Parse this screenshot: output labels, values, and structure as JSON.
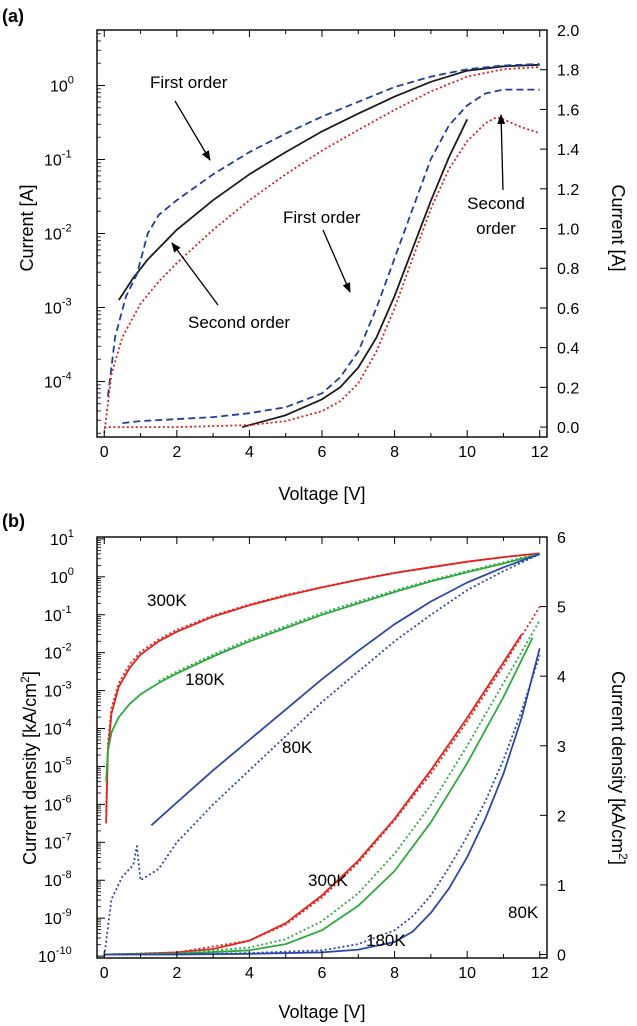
{
  "chart_data": [
    {
      "panel_label": "(a)",
      "type": "line",
      "xlabel": "Voltage [V]",
      "ylabel_left": "Current [A]",
      "ylabel_right": "Current [A]",
      "xlim": [
        -0.2,
        12.2
      ],
      "ylim_left_log10": [
        -4.75,
        0.75
      ],
      "ylim_right": [
        -0.05,
        2.0
      ],
      "y_left_scale": "log",
      "y_right_scale": "linear",
      "x_ticks": [
        "0",
        "2",
        "4",
        "6",
        "8",
        "10",
        "12"
      ],
      "y_left_ticks": [
        {
          "exp": 0,
          "base": "10",
          "sup": "0"
        },
        {
          "exp": -1,
          "base": "10",
          "sup": "-1"
        },
        {
          "exp": -2,
          "base": "10",
          "sup": "-2"
        },
        {
          "exp": -3,
          "base": "10",
          "sup": "-3"
        },
        {
          "exp": -4,
          "base": "10",
          "sup": "-4"
        }
      ],
      "y_right_ticks": [
        "0.0",
        "0.2",
        "0.4",
        "0.6",
        "0.8",
        "1.0",
        "1.2",
        "1.4",
        "1.6",
        "1.8",
        "2.0"
      ],
      "annotations": [
        "First order",
        "Second order",
        "First order",
        "Second",
        "order"
      ],
      "series": [
        {
          "color": "#1b1b1b",
          "dash": "solid",
          "axis": "log",
          "x": [
            0.4,
            0.8,
            1.2,
            2.0,
            3.0,
            4.0,
            5.0,
            6.0,
            7.0,
            8.0,
            9.0,
            10.0,
            11.0,
            12.0
          ],
          "y": [
            -2.9,
            -2.6,
            -2.35,
            -1.95,
            -1.55,
            -1.2,
            -0.9,
            -0.62,
            -0.38,
            -0.15,
            0.05,
            0.2,
            0.26,
            0.28
          ]
        },
        {
          "color": "#1f3f9e",
          "dash": "dashed",
          "axis": "log",
          "x": [
            0.1,
            0.3,
            0.6,
            0.9,
            1.2,
            1.5,
            2.0,
            3.0,
            4.0,
            5.0,
            6.0,
            7.0,
            8.0,
            9.0,
            10.0,
            11.0,
            12.0
          ],
          "y": [
            -4.2,
            -3.4,
            -2.85,
            -2.55,
            -2.0,
            -1.75,
            -1.55,
            -1.2,
            -0.9,
            -0.65,
            -0.42,
            -0.22,
            -0.02,
            0.12,
            0.22,
            0.27,
            0.29
          ]
        },
        {
          "color": "#d62020",
          "dash": "dotted",
          "axis": "log",
          "x": [
            0.0,
            0.2,
            0.5,
            1.0,
            1.5,
            2.0,
            3.0,
            4.0,
            5.0,
            6.0,
            7.0,
            8.0,
            9.0,
            10.0,
            11.0,
            12.0
          ],
          "y": [
            -4.7,
            -3.9,
            -3.4,
            -2.95,
            -2.65,
            -2.4,
            -1.95,
            -1.55,
            -1.2,
            -0.88,
            -0.6,
            -0.33,
            -0.08,
            0.12,
            0.22,
            0.25
          ]
        },
        {
          "color": "#1b1b1b",
          "dash": "solid",
          "axis": "linear",
          "x": [
            3.8,
            5.0,
            6.0,
            6.5,
            7.0,
            7.5,
            8.0,
            8.5,
            9.0,
            9.5,
            10.0
          ],
          "y": [
            0.0,
            0.06,
            0.14,
            0.2,
            0.3,
            0.45,
            0.66,
            0.9,
            1.14,
            1.36,
            1.55
          ]
        },
        {
          "color": "#1f3f9e",
          "dash": "dashed",
          "axis": "linear",
          "x": [
            0.5,
            1.0,
            2.0,
            3.0,
            4.0,
            5.0,
            6.0,
            6.5,
            7.0,
            7.5,
            8.0,
            8.5,
            9.0,
            9.5,
            10.0,
            10.5,
            11.0,
            11.5,
            12.0
          ],
          "y": [
            0.02,
            0.03,
            0.04,
            0.05,
            0.07,
            0.1,
            0.17,
            0.25,
            0.38,
            0.6,
            0.85,
            1.1,
            1.35,
            1.52,
            1.62,
            1.68,
            1.7,
            1.7,
            1.7
          ]
        },
        {
          "color": "#d62020",
          "dash": "dotted",
          "axis": "linear",
          "x": [
            0.0,
            2.0,
            4.0,
            5.0,
            6.0,
            6.5,
            7.0,
            7.5,
            8.0,
            8.5,
            9.0,
            9.5,
            10.0,
            10.5,
            10.8,
            11.0,
            11.5,
            12.0
          ],
          "y": [
            0.0,
            0.0,
            0.01,
            0.03,
            0.08,
            0.13,
            0.22,
            0.38,
            0.6,
            0.85,
            1.1,
            1.3,
            1.44,
            1.53,
            1.56,
            1.55,
            1.51,
            1.48
          ]
        }
      ]
    },
    {
      "panel_label": "(b)",
      "type": "line",
      "xlabel": "Voltage [V]",
      "ylabel_left": "Current density [kA/cm²]",
      "ylabel_right": "Current density [kA/cm²]",
      "ylabel_base": "Current density [kA/cm",
      "ylabel_sup": "2",
      "ylabel_end": "]",
      "xlim": [
        -0.2,
        12.2
      ],
      "ylim_left_log10": [
        -10.05,
        1.05
      ],
      "ylim_right": [
        -0.05,
        6.0
      ],
      "y_left_scale": "log",
      "y_right_scale": "linear",
      "x_ticks": [
        "0",
        "2",
        "4",
        "6",
        "8",
        "10",
        "12"
      ],
      "y_left_ticks": [
        {
          "exp": 1,
          "base": "10",
          "sup": "1"
        },
        {
          "exp": 0,
          "base": "10",
          "sup": "0"
        },
        {
          "exp": -1,
          "base": "10",
          "sup": "-1"
        },
        {
          "exp": -2,
          "base": "10",
          "sup": "-2"
        },
        {
          "exp": -3,
          "base": "10",
          "sup": "-3"
        },
        {
          "exp": -4,
          "base": "10",
          "sup": "-4"
        },
        {
          "exp": -5,
          "base": "10",
          "sup": "-5"
        },
        {
          "exp": -6,
          "base": "10",
          "sup": "-6"
        },
        {
          "exp": -7,
          "base": "10",
          "sup": "-7"
        },
        {
          "exp": -8,
          "base": "10",
          "sup": "-8"
        },
        {
          "exp": -9,
          "base": "10",
          "sup": "-9"
        },
        {
          "exp": -10,
          "base": "10",
          "sup": "-10"
        }
      ],
      "y_right_ticks": [
        "0",
        "1",
        "2",
        "3",
        "4",
        "5",
        "6"
      ],
      "annotations": [
        "300K",
        "180K",
        "80K",
        "300K",
        "180K",
        "80K"
      ],
      "series": [
        {
          "color": "#e3231f",
          "dash": "solid",
          "axis": "log",
          "x": [
            0.05,
            0.1,
            0.2,
            0.4,
            0.7,
            1.0,
            1.5,
            2.0,
            3.0,
            4.0,
            5.0,
            6.0,
            7.0,
            8.0,
            9.0,
            10.0,
            11.0,
            12.0
          ],
          "y": [
            -6.5,
            -4.6,
            -3.6,
            -2.9,
            -2.4,
            -2.05,
            -1.7,
            -1.45,
            -1.05,
            -0.75,
            -0.5,
            -0.28,
            -0.08,
            0.1,
            0.25,
            0.4,
            0.52,
            0.62
          ]
        },
        {
          "color": "#e3231f",
          "dash": "dotted",
          "axis": "log",
          "x": [
            0.05,
            0.1,
            0.2,
            0.4,
            0.7,
            1.0,
            1.5,
            2.0,
            3.0,
            4.0,
            5.0,
            6.0,
            7.0,
            8.0,
            9.0,
            10.0,
            11.0,
            12.0
          ],
          "y": [
            -6.2,
            -4.4,
            -3.45,
            -2.8,
            -2.3,
            -1.98,
            -1.65,
            -1.4,
            -1.02,
            -0.73,
            -0.48,
            -0.27,
            -0.07,
            0.11,
            0.26,
            0.4,
            0.52,
            0.62
          ]
        },
        {
          "color": "#2ea840",
          "dash": "solid",
          "axis": "log",
          "x": [
            0.05,
            0.1,
            0.2,
            0.4,
            0.7,
            1.0,
            1.5,
            2.0,
            3.0,
            4.0,
            5.0,
            6.0,
            7.0,
            8.0,
            9.0,
            10.0,
            11.0,
            12.0
          ],
          "y": [
            -5.4,
            -4.6,
            -4.1,
            -3.7,
            -3.35,
            -3.1,
            -2.8,
            -2.55,
            -2.1,
            -1.7,
            -1.35,
            -1.0,
            -0.7,
            -0.4,
            -0.12,
            0.12,
            0.35,
            0.6
          ]
        },
        {
          "color": "#2ea840",
          "dash": "dotted",
          "axis": "log",
          "x": [
            1.5,
            2.0,
            3.0,
            4.0,
            5.0,
            6.0,
            7.0,
            8.0,
            9.0,
            10.0,
            11.0,
            12.0
          ],
          "y": [
            -2.75,
            -2.5,
            -2.05,
            -1.65,
            -1.3,
            -0.95,
            -0.65,
            -0.36,
            -0.09,
            0.15,
            0.38,
            0.62
          ]
        },
        {
          "color": "#2c47a8",
          "dash": "solid",
          "axis": "log",
          "x": [
            1.3,
            2.0,
            3.0,
            4.0,
            5.0,
            6.0,
            7.0,
            8.0,
            9.0,
            10.0,
            11.0,
            12.0
          ],
          "y": [
            -6.55,
            -5.95,
            -5.1,
            -4.3,
            -3.5,
            -2.7,
            -1.95,
            -1.25,
            -0.65,
            -0.15,
            0.25,
            0.6
          ]
        },
        {
          "color": "#2c47a8",
          "dash": "dotted",
          "axis": "log",
          "x": [
            0.0,
            0.2,
            0.5,
            0.8,
            0.9,
            1.0,
            1.5,
            2.0,
            2.5,
            3.0,
            4.0,
            5.0,
            6.0,
            7.0,
            8.0,
            9.0,
            10.0,
            11.0,
            12.0
          ],
          "y": [
            -10.0,
            -8.5,
            -7.9,
            -7.6,
            -7.1,
            -8.0,
            -7.7,
            -7.0,
            -6.5,
            -6.0,
            -5.1,
            -4.2,
            -3.3,
            -2.5,
            -1.7,
            -1.0,
            -0.35,
            0.15,
            0.6
          ]
        },
        {
          "color": "#e3231f",
          "dash": "solid",
          "axis": "linear",
          "x": [
            0.0,
            1.0,
            2.0,
            3.0,
            4.0,
            5.0,
            6.0,
            7.0,
            8.0,
            9.0,
            10.0,
            11.0,
            11.5
          ],
          "y": [
            0.0,
            0.01,
            0.03,
            0.08,
            0.2,
            0.45,
            0.85,
            1.35,
            1.95,
            2.65,
            3.4,
            4.2,
            4.6
          ]
        },
        {
          "color": "#e3231f",
          "dash": "dotted",
          "axis": "linear",
          "x": [
            0.0,
            2.0,
            4.0,
            5.0,
            6.0,
            7.0,
            8.0,
            9.0,
            10.0,
            11.0,
            12.0
          ],
          "y": [
            0.0,
            0.03,
            0.2,
            0.43,
            0.82,
            1.32,
            1.93,
            2.6,
            3.35,
            4.15,
            5.0
          ]
        },
        {
          "color": "#2ea840",
          "dash": "solid",
          "axis": "linear",
          "x": [
            0.0,
            2.0,
            4.0,
            5.0,
            6.0,
            7.0,
            8.0,
            9.0,
            10.0,
            11.0,
            11.8
          ],
          "y": [
            0.0,
            0.01,
            0.06,
            0.15,
            0.35,
            0.7,
            1.2,
            1.9,
            2.75,
            3.7,
            4.55
          ]
        },
        {
          "color": "#2ea840",
          "dash": "dotted",
          "axis": "linear",
          "x": [
            0.0,
            2.0,
            4.0,
            5.0,
            6.0,
            7.0,
            8.0,
            9.0,
            10.0,
            11.0,
            12.0
          ],
          "y": [
            0.0,
            0.02,
            0.1,
            0.22,
            0.48,
            0.88,
            1.45,
            2.15,
            3.0,
            3.9,
            4.8
          ]
        },
        {
          "color": "#2c47a8",
          "dash": "solid",
          "axis": "linear",
          "x": [
            0.0,
            2.0,
            4.0,
            6.0,
            7.0,
            8.0,
            8.5,
            9.0,
            9.5,
            10.0,
            10.5,
            11.0,
            11.5,
            12.0
          ],
          "y": [
            0.0,
            0.0,
            0.01,
            0.03,
            0.07,
            0.18,
            0.33,
            0.6,
            0.95,
            1.4,
            1.95,
            2.6,
            3.4,
            4.4
          ]
        },
        {
          "color": "#2c47a8",
          "dash": "dotted",
          "axis": "linear",
          "x": [
            0.0,
            2.0,
            4.0,
            6.0,
            7.0,
            8.0,
            8.5,
            9.0,
            9.5,
            10.0,
            10.5,
            11.0,
            11.5,
            12.0
          ],
          "y": [
            0.0,
            0.0,
            0.02,
            0.06,
            0.15,
            0.35,
            0.55,
            0.85,
            1.25,
            1.7,
            2.2,
            2.8,
            3.5,
            4.3
          ]
        }
      ]
    }
  ]
}
